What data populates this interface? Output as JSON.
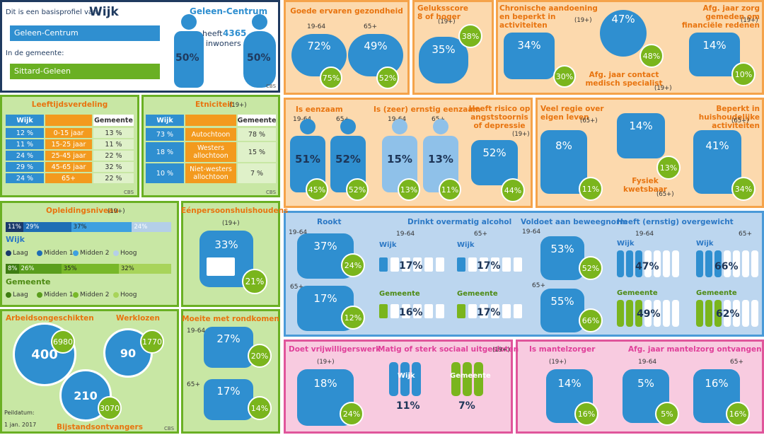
{
  "profile": {
    "intro": "Dit is een basisprofiel van",
    "wijk_label": "Wijk",
    "wijk_select": "Geleen-Centrum",
    "gemeente_label": "In de gemeente:",
    "gemeente_select": "Sittard-Geleen",
    "area": "Geleen-Centrum",
    "inhabitants_pre": "heeft",
    "inhabitants": "4365",
    "inhabitants_post": "inwoners",
    "male": "50%",
    "female": "50%",
    "source": "CBS"
  },
  "age": {
    "title": "Leeftijdsverdeling",
    "header_wijk": "Wijk",
    "header_gemeente": "Gemeente",
    "rows": [
      [
        "12 %",
        "0-15 jaar",
        "13 %"
      ],
      [
        "11 %",
        "15-25 jaar",
        "11 %"
      ],
      [
        "24 %",
        "25-45 jaar",
        "22 %"
      ],
      [
        "29 %",
        "45-65 jaar",
        "32 %"
      ],
      [
        "24 %",
        "65+",
        "22 %"
      ]
    ],
    "source": "CBS"
  },
  "ethnicity": {
    "title": "Etniciteit",
    "qualifier": "(19+)",
    "header_wijk": "Wijk",
    "header_gemeente": "Gemeente",
    "rows": [
      [
        "73 %",
        "Autochtoon",
        "78 %"
      ],
      [
        "18 %",
        "Westers allochtoon",
        "15 %"
      ],
      [
        "10 %",
        "Niet-westers allochtoon",
        "7 %"
      ]
    ],
    "source": "CBS"
  },
  "education": {
    "title": "Opleidingsniveau",
    "qualifier": "(19+)",
    "wijk_label": "Wijk",
    "wijk": [
      "11%",
      "29%",
      "37%",
      "24%"
    ],
    "gemeente_label": "Gemeente",
    "gemeente": [
      "8%",
      "26%",
      "35%",
      "32%"
    ],
    "legend": [
      "Laag",
      "Midden 1",
      "Midden 2",
      "Hoog"
    ]
  },
  "single": {
    "title": "Eénpersoonshuishoudens",
    "qualifier": "(19+)",
    "wijk": "33%",
    "gemeente": "21%"
  },
  "work": {
    "disabled_title": "Arbeidsongeschikten",
    "disabled": "400",
    "disabled_gemeente": "6980",
    "unemployed_title": "Werklozen",
    "unemployed": "90",
    "unemployed_gemeente": "1770",
    "welfare_title": "Bijstandsontvangers",
    "welfare": "210",
    "welfare_gemeente": "3070",
    "date_label": "Peildatum:",
    "date": "1 jan. 2017",
    "source": "CBS"
  },
  "income": {
    "title": "Moeite met rondkomen",
    "groups": [
      {
        "age": "19-64",
        "wijk": "27%",
        "gemeente": "20%"
      },
      {
        "age": "65+",
        "wijk": "17%",
        "gemeente": "14%"
      }
    ]
  },
  "health": {
    "title": "Goede ervaren gezondheid",
    "groups": [
      {
        "age": "19-64",
        "wijk": "72%",
        "gemeente": "75%"
      },
      {
        "age": "65+",
        "wijk": "49%",
        "gemeente": "52%"
      }
    ]
  },
  "happiness": {
    "title": "Geluksscore 8 of hoger",
    "qualifier": "(19+)",
    "wijk": "35%",
    "gemeente": "38%"
  },
  "chronic": {
    "title": "Chronische aandoening en beperkt in activiteiten",
    "qualifier": "(19+)",
    "wijk": "34%",
    "gemeente": "30%"
  },
  "specialist": {
    "title": "Afg. jaar contact medisch specialist",
    "qualifier": "(19+)",
    "wijk": "47%",
    "gemeente": "48%"
  },
  "care_avoided": {
    "title": "Afg. jaar zorg gemeden om financiële redenen",
    "qualifier": "(19+)",
    "wijk": "14%",
    "gemeente": "10%"
  },
  "lonely": {
    "title": "Is eenzaam",
    "groups": [
      {
        "age": "19-64",
        "wijk": "51%",
        "gemeente": "45%"
      },
      {
        "age": "65+",
        "wijk": "52%",
        "gemeente": "52%"
      }
    ]
  },
  "very_lonely": {
    "title": "Is (zeer) ernstig eenzaam",
    "groups": [
      {
        "age": "19-64",
        "wijk": "15%",
        "gemeente": "13%"
      },
      {
        "age": "65+",
        "wijk": "13%",
        "gemeente": "11%"
      }
    ]
  },
  "depression": {
    "title": "Heeft risico op angststoornis of depressie",
    "qualifier": "(19+)",
    "wijk": "52%",
    "gemeente": "44%"
  },
  "control": {
    "title": "Veel regie over eigen leven",
    "qualifier": "(65+)",
    "wijk": "8%",
    "gemeente": "11%"
  },
  "frail": {
    "title": "Fysiek kwetsbaar",
    "qualifier": "(65+)",
    "wijk": "14%",
    "gemeente": "13%"
  },
  "household": {
    "title": "Beperkt in huishoudelijke activiteiten",
    "qualifier": "(65+)",
    "wijk": "41%",
    "gemeente": "34%"
  },
  "smoking": {
    "title": "Rookt",
    "groups": [
      {
        "age": "19-64",
        "wijk": "37%",
        "gemeente": "24%"
      },
      {
        "age": "65+",
        "wijk": "17%",
        "gemeente": "12%"
      }
    ]
  },
  "alcohol": {
    "title": "Drinkt overmatig alcohol",
    "wijk_label": "Wijk",
    "gemeente_label": "Gemeente",
    "groups": [
      {
        "age": "19-64",
        "wijk": "17%",
        "gemeente": "16%"
      },
      {
        "age": "65+",
        "wijk": "17%",
        "gemeente": "17%"
      }
    ]
  },
  "exercise": {
    "title": "Voldoet aan beweegnorm",
    "groups": [
      {
        "age": "19-64",
        "wijk": "53%",
        "gemeente": "52%"
      },
      {
        "age": "65+",
        "wijk": "55%",
        "gemeente": "66%"
      }
    ]
  },
  "overweight": {
    "title": "Heeft (ernstig) overgewicht",
    "wijk_label": "Wijk",
    "gemeente_label": "Gemeente",
    "groups": [
      {
        "age": "19-64",
        "wijk": "47%",
        "gemeente": "49%"
      },
      {
        "age": "65+",
        "wijk": "66%",
        "gemeente": "62%"
      }
    ]
  },
  "volunteer": {
    "title": "Doet vrijwilligerswerk",
    "qualifier": "(19+)",
    "wijk": "18%",
    "gemeente": "24%"
  },
  "excluded": {
    "title": "Matig of sterk sociaal uitgesloten",
    "qualifier": "(19+)",
    "wijk_label": "Wijk",
    "gemeente_label": "Gemeente",
    "wijk": "11%",
    "gemeente": "7%"
  },
  "carer": {
    "title": "Is mantelzorger",
    "qualifier": "(19+)",
    "wijk": "14%",
    "gemeente": "16%"
  },
  "care_received": {
    "title": "Afg. jaar mantelzorg ontvangen",
    "groups": [
      {
        "age": "19-64",
        "wijk": "5%",
        "gemeente": "5%"
      },
      {
        "age": "65+",
        "wijk": "16%",
        "gemeente": "16%"
      }
    ]
  }
}
